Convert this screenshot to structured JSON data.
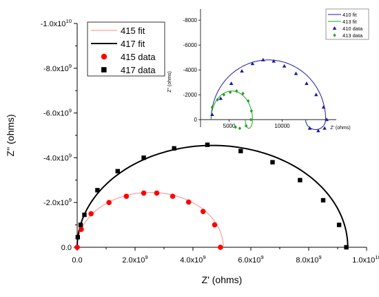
{
  "chart_data": [
    {
      "type": "scatter",
      "panel": "main",
      "xlabel": "Z' (ohms)",
      "ylabel": "Z'' (ohms)",
      "xlim": [
        0,
        10000000000.0
      ],
      "ylim": [
        0,
        -10000000000.0
      ],
      "x_ticks": [
        0,
        2000000000.0,
        4000000000.0,
        6000000000.0,
        8000000000.0,
        10000000000.0
      ],
      "x_tick_labels": [
        {
          "mant": "0.0",
          "exp": ""
        },
        {
          "mant": "2.0x10",
          "exp": "9"
        },
        {
          "mant": "4.0x10",
          "exp": "9"
        },
        {
          "mant": "6.0x10",
          "exp": "9"
        },
        {
          "mant": "8.0x10",
          "exp": "9"
        },
        {
          "mant": "1.0x10",
          "exp": "10"
        }
      ],
      "y_ticks": [
        0,
        -2000000000.0,
        -4000000000.0,
        -6000000000.0,
        -8000000000.0,
        -10000000000.0
      ],
      "y_tick_labels": [
        {
          "mant": "0.0",
          "exp": ""
        },
        {
          "mant": "-2.0x10",
          "exp": "9"
        },
        {
          "mant": "-4.0x10",
          "exp": "9"
        },
        {
          "mant": "-6.0x10",
          "exp": "9"
        },
        {
          "mant": "-8.0x10",
          "exp": "9"
        },
        {
          "mant": "-1.0x10",
          "exp": "10"
        }
      ],
      "legend_position": "top-left",
      "grid": false,
      "series": [
        {
          "name": "415 fit",
          "kind": "line",
          "color": "#ff8a8a",
          "stroke_width": 1,
          "arc": {
            "x_start": 0,
            "x_end": 5050000000.0,
            "peak": -2450000000.0
          }
        },
        {
          "name": "417 fit",
          "kind": "line",
          "color": "#000000",
          "stroke_width": 2,
          "arc": {
            "x_start": 0,
            "x_end": 9350000000.0,
            "peak": -4550000000.0
          }
        },
        {
          "name": "415 data",
          "kind": "marker",
          "marker": "circle",
          "color": "#ff0000",
          "x": [
            0,
            140000000.0,
            480000000.0,
            1100000000.0,
            1700000000.0,
            2300000000.0,
            2750000000.0,
            3300000000.0,
            3850000000.0,
            4350000000.0,
            4750000000.0,
            4950000000.0
          ],
          "y": [
            0,
            -800000000.0,
            -1500000000.0,
            -2000000000.0,
            -2280000000.0,
            -2420000000.0,
            -2420000000.0,
            -2280000000.0,
            -2020000000.0,
            -1600000000.0,
            -1000000000.0,
            0
          ]
        },
        {
          "name": "417 data",
          "kind": "marker",
          "marker": "square",
          "color": "#000000",
          "x": [
            20000000.0,
            120000000.0,
            250000000.0,
            700000000.0,
            1400000000.0,
            2300000000.0,
            3350000000.0,
            4500000000.0,
            5650000000.0,
            6750000000.0,
            7700000000.0,
            8500000000.0,
            9050000000.0,
            9300000000.0
          ],
          "y": [
            -450000000.0,
            -1000000000.0,
            -1450000000.0,
            -2550000000.0,
            -3400000000.0,
            -4000000000.0,
            -4420000000.0,
            -4580000000.0,
            -4300000000.0,
            -3800000000.0,
            -3000000000.0,
            -2100000000.0,
            -1000000000.0,
            0
          ]
        }
      ]
    },
    {
      "type": "scatter",
      "panel": "inset",
      "xlabel": "Z' (ohms)",
      "ylabel": "Z'' (ohms)",
      "xlim": [
        2300,
        15100
      ],
      "ylim": [
        600,
        -8900
      ],
      "x_ticks": [
        5000,
        10000
      ],
      "x_tick_labels": [
        "5000",
        "10000"
      ],
      "y_ticks": [
        0,
        -2000,
        -4000,
        -6000,
        -8000
      ],
      "y_tick_labels": [
        "0",
        "-2000",
        "-4000",
        "-6000",
        "-8000"
      ],
      "legend_position": "top-right",
      "grid": false,
      "series": [
        {
          "name": "410 fit",
          "kind": "line",
          "color": "#1a1aa0",
          "stroke_width": 1,
          "loop": {
            "x_start": 3300,
            "x_end": 14100,
            "peak": -4800,
            "tail": -800
          }
        },
        {
          "name": "413 fit",
          "kind": "line",
          "color": "#22a022",
          "stroke_width": 1,
          "loop": {
            "x_start": 3300,
            "x_end": 7200,
            "peak": -2300,
            "tail": -700
          }
        },
        {
          "name": "410 data",
          "kind": "marker",
          "marker": "triangle",
          "color": "#1a1aa0",
          "x": [
            3400,
            4200,
            5200,
            6200,
            7200,
            8200,
            9200,
            10200,
            11300,
            12300,
            13200,
            13900,
            14200,
            14000,
            13400,
            12600
          ],
          "y": [
            -400,
            -1700,
            -2900,
            -3900,
            -4500,
            -4800,
            -4700,
            -4300,
            -3700,
            -2900,
            -2000,
            -1000,
            0,
            700,
            900,
            700
          ]
        },
        {
          "name": "413 data",
          "kind": "marker",
          "marker": "diamond",
          "color": "#22a022",
          "x": [
            3400,
            3900,
            4500,
            5100,
            5700,
            6300,
            6800,
            7100,
            7050,
            6600,
            6000,
            5600
          ],
          "y": [
            -1000,
            -1600,
            -2000,
            -2200,
            -2300,
            -2100,
            -1500,
            -700,
            0,
            500,
            700,
            600
          ]
        }
      ]
    }
  ]
}
